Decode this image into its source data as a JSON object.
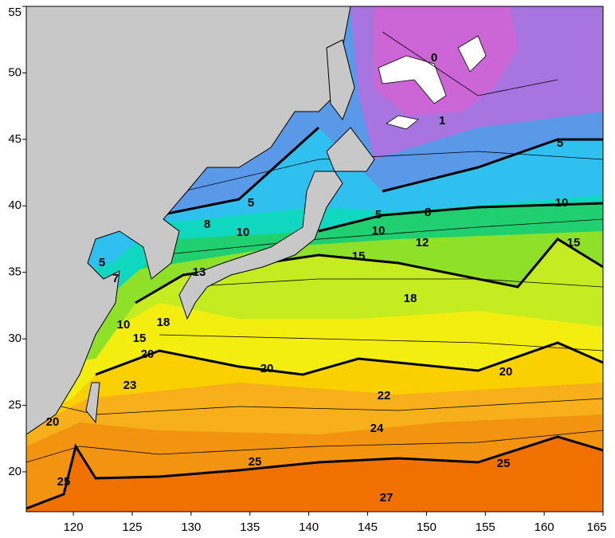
{
  "map": {
    "xlim": [
      116,
      165
    ],
    "ylim": [
      17,
      55
    ],
    "xticks": [
      120,
      125,
      130,
      135,
      140,
      145,
      150,
      155,
      160,
      165
    ],
    "yticks": [
      20,
      25,
      30,
      35,
      40,
      45,
      50,
      55
    ],
    "contour_labels": [
      "0",
      "1",
      "5",
      "5",
      "5",
      "8",
      "8",
      "10",
      "10",
      "10",
      "12",
      "15",
      "15",
      "13",
      "18",
      "18",
      "15",
      "10",
      "7",
      "5",
      "20",
      "20",
      "20",
      "23",
      "22",
      "24",
      "25",
      "25",
      "25",
      "27",
      "20"
    ]
  }
}
